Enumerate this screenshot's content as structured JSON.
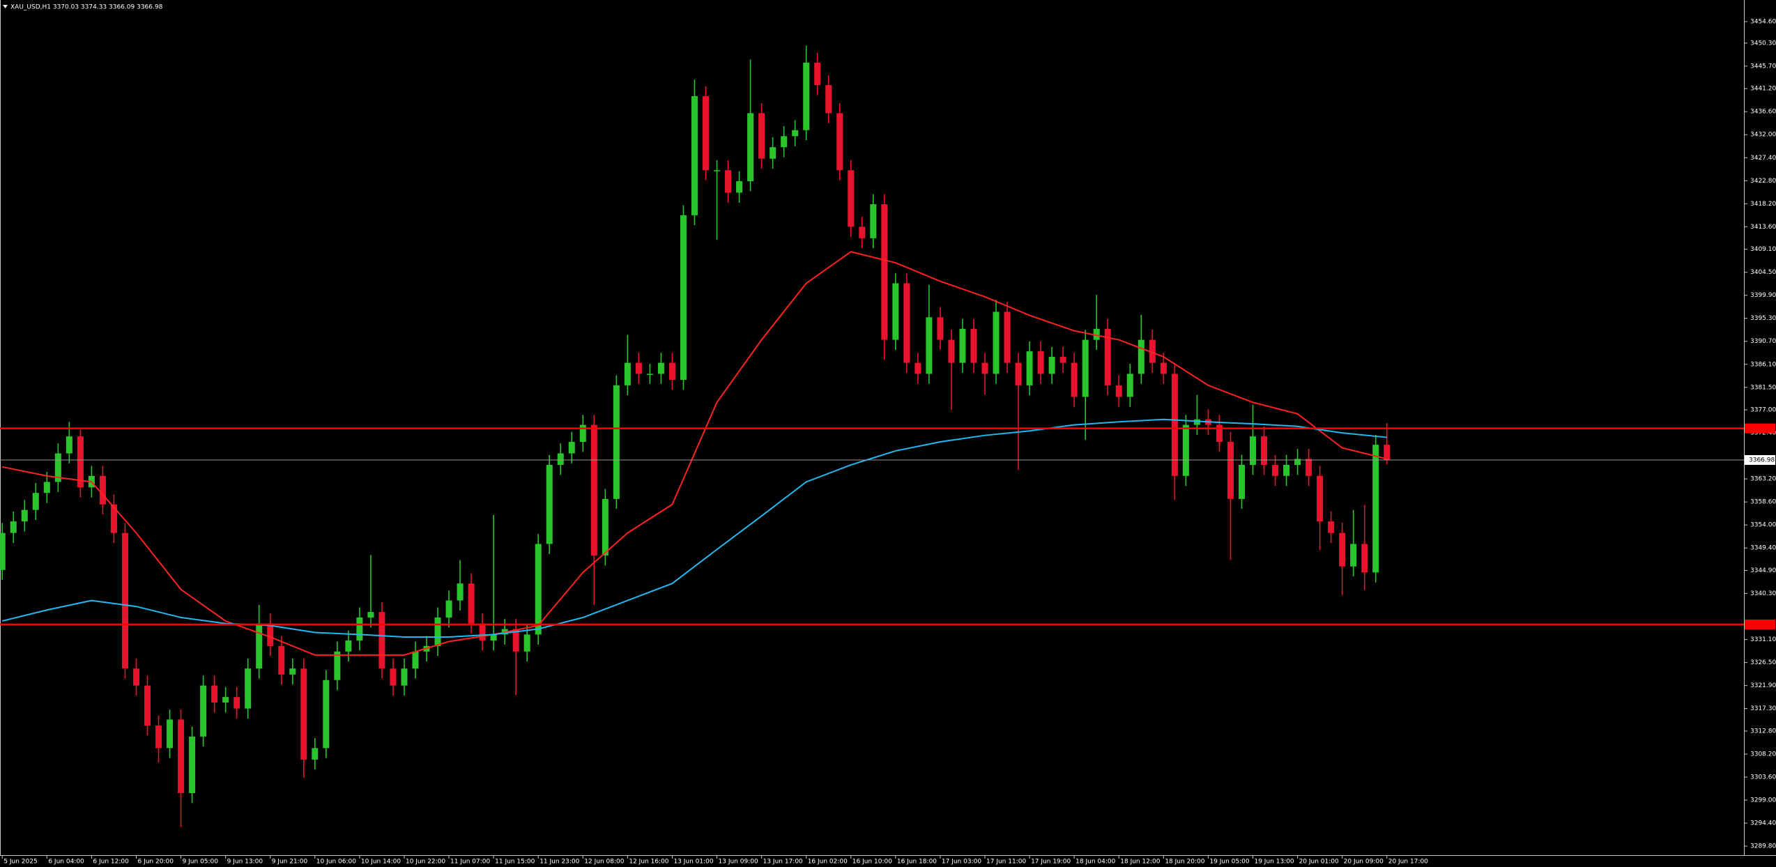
{
  "chart_data": {
    "type": "candlestick",
    "title": "XAU_USD,H1  3370.03 3374.33 3366.09 3366.98",
    "categories": [
      "5 Jun 2025",
      null,
      null,
      null,
      "6 Jun 04:00",
      null,
      null,
      null,
      "6 Jun 12:00",
      null,
      null,
      null,
      "6 Jun 20:00",
      null,
      null,
      null,
      "9 Jun 05:00",
      null,
      null,
      null,
      "9 Jun 13:00",
      null,
      null,
      null,
      "9 Jun 21:00",
      null,
      null,
      null,
      "10 Jun 06:00",
      null,
      null,
      null,
      "10 Jun 14:00",
      null,
      null,
      null,
      "10 Jun 22:00",
      null,
      null,
      null,
      "11 Jun 07:00",
      null,
      null,
      null,
      "11 Jun 15:00",
      null,
      null,
      null,
      "11 Jun 23:00",
      null,
      null,
      null,
      "12 Jun 08:00",
      null,
      null,
      null,
      "12 Jun 16:00",
      null,
      null,
      null,
      "13 Jun 01:00",
      null,
      null,
      null,
      "13 Jun 09:00",
      null,
      null,
      null,
      "13 Jun 17:00",
      null,
      null,
      null,
      "16 Jun 02:00",
      null,
      null,
      null,
      "16 Jun 10:00",
      null,
      null,
      null,
      "16 Jun 18:00",
      null,
      null,
      null,
      "17 Jun 03:00",
      null,
      null,
      null,
      "17 Jun 11:00",
      null,
      null,
      null,
      "17 Jun 19:00",
      null,
      null,
      null,
      "18 Jun 04:00",
      null,
      null,
      null,
      "18 Jun 12:00",
      null,
      null,
      null,
      "18 Jun 20:00",
      null,
      null,
      null,
      "19 Jun 05:00",
      null,
      null,
      null,
      "19 Jun 13:00",
      null,
      null,
      null,
      "20 Jun 01:00",
      null,
      null,
      null,
      "20 Jun 09:00",
      null,
      null,
      null,
      "20 Jun 17:00"
    ],
    "open": [
      3345.0,
      3352.4,
      3354.7,
      3357.0,
      3360.4,
      3362.6,
      3368.3,
      3371.7,
      3361.5,
      3363.8,
      3358.1,
      3352.4,
      3325.3,
      3321.9,
      3313.9,
      3309.4,
      3315.1,
      3300.4,
      3311.7,
      3321.9,
      3318.5,
      3319.6,
      3317.3,
      3325.3,
      3334.3,
      3329.8,
      3324.1,
      3325.3,
      3307.1,
      3309.4,
      3323.0,
      3328.7,
      3330.9,
      3335.5,
      3336.6,
      3325.3,
      3321.9,
      3325.3,
      3328.7,
      3329.8,
      3335.5,
      3338.9,
      3342.3,
      3334.3,
      3330.9,
      3332.1,
      3333.2,
      3328.7,
      3332.1,
      3350.2,
      3366.0,
      3368.3,
      3370.6,
      3374.0,
      3347.9,
      3359.2,
      3381.9,
      3386.4,
      3384.2,
      3384.2,
      3386.4,
      3383.0,
      3415.9,
      3439.7,
      3424.9,
      3424.9,
      3420.4,
      3422.7,
      3436.3,
      3427.2,
      3429.5,
      3431.7,
      3432.9,
      3446.4,
      3441.9,
      3436.3,
      3424.9,
      3413.6,
      3411.3,
      3418.1,
      3391.0,
      3402.3,
      3386.4,
      3384.2,
      3395.5,
      3391.0,
      3386.4,
      3393.2,
      3386.4,
      3384.2,
      3396.6,
      3386.4,
      3381.9,
      3388.7,
      3384.2,
      3387.6,
      3386.4,
      3379.6,
      3391.0,
      3393.2,
      3381.9,
      3379.6,
      3384.2,
      3391.0,
      3386.4,
      3384.2,
      3363.8,
      3374.0,
      3375.1,
      3374.0,
      3370.6,
      3359.2,
      3366.0,
      3371.7,
      3366.0,
      3363.8,
      3366.0,
      3367.2,
      3363.8,
      3354.7,
      3352.4,
      3345.7,
      3350.2,
      3344.5,
      3370.03
    ],
    "high": [
      3354.4,
      3356.7,
      3359.0,
      3362.4,
      3364.6,
      3370.3,
      3374.6,
      3373.0,
      3365.8,
      3365.8,
      3360.1,
      3354.4,
      3327.3,
      3323.9,
      3315.9,
      3317.1,
      3317.1,
      3313.7,
      3323.9,
      3323.9,
      3321.6,
      3321.6,
      3327.3,
      3338.0,
      3336.3,
      3331.8,
      3327.3,
      3327.3,
      3311.4,
      3325.0,
      3330.7,
      3332.9,
      3337.5,
      3348.0,
      3338.6,
      3327.3,
      3327.3,
      3330.7,
      3331.8,
      3337.5,
      3340.9,
      3347.0,
      3344.3,
      3336.3,
      3356.0,
      3335.2,
      3335.2,
      3334.1,
      3352.2,
      3368.0,
      3370.3,
      3372.6,
      3376.0,
      3376.0,
      3361.2,
      3383.9,
      3392.0,
      3388.4,
      3386.2,
      3388.4,
      3388.4,
      3417.9,
      3443.0,
      3441.7,
      3426.9,
      3426.9,
      3424.7,
      3447.0,
      3438.3,
      3431.5,
      3433.7,
      3434.9,
      3449.8,
      3448.4,
      3443.9,
      3438.3,
      3426.9,
      3415.6,
      3420.1,
      3420.1,
      3404.3,
      3404.3,
      3388.4,
      3402.0,
      3397.5,
      3393.0,
      3395.2,
      3395.2,
      3388.4,
      3399.0,
      3398.6,
      3388.4,
      3390.7,
      3390.7,
      3389.6,
      3389.6,
      3388.4,
      3393.0,
      3400.0,
      3395.2,
      3383.9,
      3386.2,
      3396.0,
      3393.0,
      3388.4,
      3386.2,
      3376.0,
      3380.0,
      3377.1,
      3376.0,
      3372.6,
      3368.0,
      3378.0,
      3373.7,
      3368.0,
      3368.0,
      3369.2,
      3369.2,
      3365.8,
      3356.7,
      3354.4,
      3357.0,
      3358.0,
      3372.0,
      3374.33
    ],
    "low": [
      3343.0,
      3350.4,
      3352.7,
      3355.0,
      3358.4,
      3360.6,
      3366.3,
      3359.5,
      3359.5,
      3356.1,
      3350.4,
      3323.3,
      3319.9,
      3311.9,
      3306.5,
      3307.4,
      3293.6,
      3298.4,
      3309.7,
      3316.5,
      3316.5,
      3315.3,
      3315.3,
      3323.3,
      3327.8,
      3322.1,
      3322.1,
      3303.5,
      3305.1,
      3307.4,
      3321.0,
      3326.7,
      3328.9,
      3333.5,
      3323.3,
      3319.9,
      3319.9,
      3323.3,
      3326.7,
      3327.8,
      3333.5,
      3336.9,
      3332.3,
      3328.9,
      3328.9,
      3330.1,
      3320.0,
      3326.7,
      3330.1,
      3348.2,
      3364.0,
      3366.3,
      3368.6,
      3338.0,
      3345.9,
      3357.2,
      3379.9,
      3382.2,
      3382.2,
      3382.2,
      3381.0,
      3381.0,
      3413.9,
      3422.9,
      3411.0,
      3418.4,
      3418.4,
      3420.7,
      3425.2,
      3425.2,
      3427.5,
      3429.7,
      3430.9,
      3439.9,
      3434.3,
      3422.9,
      3411.6,
      3409.3,
      3409.3,
      3387.0,
      3389.0,
      3384.4,
      3382.2,
      3382.2,
      3389.0,
      3377.0,
      3384.4,
      3384.4,
      3380.0,
      3382.2,
      3384.4,
      3365.0,
      3379.9,
      3382.2,
      3382.2,
      3384.4,
      3377.6,
      3371.0,
      3389.0,
      3379.9,
      3377.6,
      3377.6,
      3382.2,
      3384.4,
      3382.2,
      3359.0,
      3361.8,
      3372.0,
      3372.0,
      3368.6,
      3347.0,
      3357.2,
      3364.0,
      3364.0,
      3361.8,
      3361.8,
      3364.0,
      3361.8,
      3349.0,
      3350.4,
      3340.0,
      3343.7,
      3341.0,
      3342.5,
      3366.09
    ],
    "close": [
      3352.4,
      3354.7,
      3357.0,
      3360.4,
      3362.6,
      3368.3,
      3371.7,
      3361.5,
      3363.8,
      3358.1,
      3352.4,
      3325.3,
      3321.9,
      3313.9,
      3309.4,
      3315.1,
      3300.4,
      3311.7,
      3321.9,
      3318.5,
      3319.6,
      3317.3,
      3325.3,
      3334.3,
      3329.8,
      3324.1,
      3325.3,
      3307.1,
      3309.4,
      3323.0,
      3328.7,
      3330.9,
      3335.5,
      3336.6,
      3325.3,
      3321.9,
      3325.3,
      3328.7,
      3329.8,
      3335.5,
      3338.9,
      3342.3,
      3334.3,
      3330.9,
      3332.1,
      3333.2,
      3328.7,
      3332.1,
      3350.2,
      3366.0,
      3368.3,
      3370.6,
      3374.0,
      3347.9,
      3359.2,
      3381.9,
      3386.4,
      3384.2,
      3384.2,
      3386.4,
      3383.0,
      3415.9,
      3439.7,
      3424.9,
      3424.9,
      3420.4,
      3422.7,
      3436.3,
      3427.2,
      3429.5,
      3431.7,
      3432.9,
      3446.4,
      3441.9,
      3436.3,
      3424.9,
      3413.6,
      3411.3,
      3418.1,
      3391.0,
      3402.3,
      3386.4,
      3384.2,
      3395.5,
      3391.0,
      3386.4,
      3393.2,
      3386.4,
      3384.2,
      3396.6,
      3386.4,
      3381.9,
      3388.7,
      3384.2,
      3387.6,
      3386.4,
      3379.6,
      3391.0,
      3393.2,
      3381.9,
      3379.6,
      3384.2,
      3391.0,
      3386.4,
      3384.2,
      3363.8,
      3374.0,
      3375.1,
      3374.0,
      3370.6,
      3359.2,
      3366.0,
      3371.7,
      3366.0,
      3363.8,
      3366.0,
      3367.2,
      3363.8,
      3354.7,
      3352.4,
      3345.7,
      3350.2,
      3344.5,
      3370.03,
      3366.98
    ],
    "up_color": "#2ac42c",
    "down_color": "#e8142e",
    "lines": [
      {
        "color": "#ff2222",
        "x": [
          0,
          4,
          8,
          12,
          16,
          20,
          24,
          28,
          32,
          36,
          40,
          44,
          48,
          52,
          56,
          60,
          64,
          68,
          72,
          76,
          80,
          84,
          88,
          92,
          96,
          100,
          104,
          108,
          112,
          116,
          120,
          124
        ],
        "values": [
          3365.6,
          3363.8,
          3362.6,
          3352.4,
          3341.1,
          3334.8,
          3331.6,
          3328.0,
          3328.0,
          3328.0,
          3330.7,
          3332.1,
          3333.9,
          3344.5,
          3352.4,
          3358.1,
          3378.5,
          3391.0,
          3402.3,
          3408.6,
          3406.4,
          3402.7,
          3399.6,
          3395.9,
          3392.8,
          3391.0,
          3387.6,
          3381.9,
          3378.5,
          3376.2,
          3369.4,
          3367.2
        ]
      },
      {
        "color": "#22b8f0",
        "x": [
          0,
          4,
          8,
          12,
          16,
          20,
          24,
          28,
          32,
          36,
          40,
          44,
          48,
          52,
          56,
          60,
          64,
          68,
          72,
          76,
          80,
          84,
          88,
          92,
          96,
          100,
          104,
          108,
          112,
          116,
          120,
          124
        ],
        "values": [
          3334.8,
          3337.0,
          3338.9,
          3337.7,
          3335.5,
          3334.3,
          3333.9,
          3332.5,
          3332.1,
          3331.6,
          3331.6,
          3332.1,
          3333.2,
          3335.5,
          3338.9,
          3342.3,
          3349.1,
          3355.8,
          3362.6,
          3366.0,
          3368.8,
          3370.6,
          3371.9,
          3372.8,
          3374.0,
          3374.6,
          3375.1,
          3374.6,
          3374.2,
          3373.7,
          3372.4,
          3371.5
        ]
      }
    ],
    "hlines": [
      {
        "value": 3373.3,
        "color": "#ff0000"
      },
      {
        "value": 3334.1,
        "color": "#ff0000"
      }
    ],
    "ylim": [
      3288.0,
      3458.5
    ],
    "yticks": [
      {
        "value": 3454.6,
        "label": "3454.60"
      },
      {
        "value": 3450.3,
        "label": "3450.30"
      },
      {
        "value": 3445.7,
        "label": "3445.70"
      },
      {
        "value": 3441.2,
        "label": "3441.20"
      },
      {
        "value": 3436.6,
        "label": "3436.60"
      },
      {
        "value": 3432.0,
        "label": "3432.00"
      },
      {
        "value": 3427.4,
        "label": "3427.40"
      },
      {
        "value": 3422.8,
        "label": "3422.80"
      },
      {
        "value": 3418.2,
        "label": "3418.20"
      },
      {
        "value": 3413.6,
        "label": "3413.60"
      },
      {
        "value": 3409.1,
        "label": "3409.10"
      },
      {
        "value": 3404.5,
        "label": "3404.50"
      },
      {
        "value": 3399.9,
        "label": "3399.90"
      },
      {
        "value": 3395.3,
        "label": "3395.30"
      },
      {
        "value": 3390.7,
        "label": "3390.70"
      },
      {
        "value": 3386.1,
        "label": "3386.10"
      },
      {
        "value": 3381.5,
        "label": "3381.50"
      },
      {
        "value": 3377.0,
        "label": "3377.00"
      },
      {
        "value": 3372.4,
        "label": "3372.40"
      },
      {
        "value": 3363.2,
        "label": "3363.20"
      },
      {
        "value": 3358.6,
        "label": "3358.60"
      },
      {
        "value": 3354.0,
        "label": "3354.00"
      },
      {
        "value": 3349.4,
        "label": "3349.40"
      },
      {
        "value": 3344.9,
        "label": "3344.90"
      },
      {
        "value": 3340.3,
        "label": "3340.30"
      },
      {
        "value": 3331.1,
        "label": "3331.10"
      },
      {
        "value": 3326.5,
        "label": "3326.50"
      },
      {
        "value": 3321.9,
        "label": "3321.90"
      },
      {
        "value": 3317.3,
        "label": "3317.30"
      },
      {
        "value": 3312.8,
        "label": "3312.80"
      },
      {
        "value": 3308.2,
        "label": "3308.20"
      },
      {
        "value": 3303.6,
        "label": "3303.60"
      },
      {
        "value": 3299.0,
        "label": "3299.00"
      },
      {
        "value": 3294.4,
        "label": "3294.40"
      },
      {
        "value": 3289.8,
        "label": "3289.80"
      }
    ],
    "background": "#000000",
    "foreground": "#ffffff"
  }
}
